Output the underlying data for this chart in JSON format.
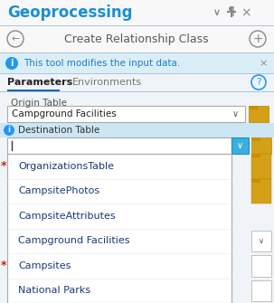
{
  "title": "Geoprocessing",
  "subtitle": "Create Relationship Class",
  "info_msg": "This tool modifies the input data.",
  "tab1": "Parameters",
  "tab2": "Environments",
  "origin_label": "Origin Table",
  "origin_value": "Campground Facilities",
  "dest_label": "Destination Table",
  "dropdown_items": [
    "OrganizationsTable",
    "CampsitePhotos",
    "CampsiteAttributes",
    "Campground Facilities",
    "Campsites",
    "National Parks"
  ],
  "title_color": "#1a8fd1",
  "subtitle_color": "#5a5a5a",
  "info_text_color": "#1a7ec8",
  "panel_bg": "#f0f4f8",
  "nav_bg": "#f8f8f8",
  "info_bg": "#daeef8",
  "tab_bg": "#f0f4f8",
  "content_bg": "#f0f4f8",
  "white": "#ffffff",
  "blue_btn": "#3bb0e0",
  "folder_color": "#d4a017",
  "asterisk_color": "#cc2200",
  "tab_underline": "#1a5fb4",
  "label_color": "#555555",
  "dropdown_item_color": "#1a3a7a",
  "border_color": "#b0c4d8",
  "outer_border": "#6aaccc",
  "icon_gray": "#888888",
  "info_icon_color": "#2196f3",
  "dest_row_bg": "#cce6f4",
  "fig_bg": "#8ec8e8"
}
